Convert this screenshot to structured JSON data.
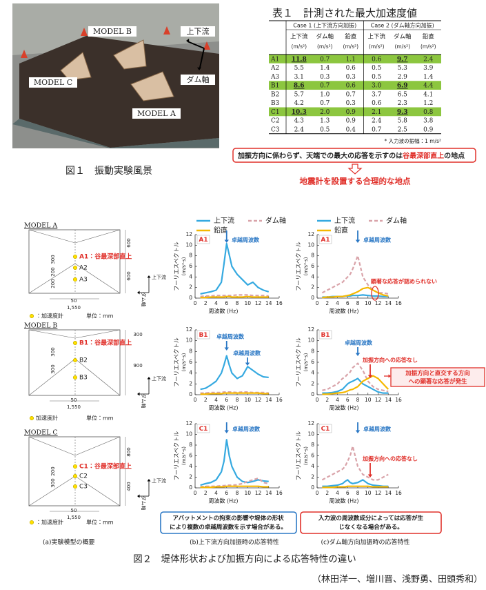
{
  "figure1": {
    "labels": {
      "model_a": "MODEL A",
      "model_b": "MODEL B",
      "model_c": "MODEL C",
      "upstream": "上下流",
      "dam_axis": "ダム軸"
    },
    "caption": "図１　振動実験風景"
  },
  "table1": {
    "title": "表１　計測された最大加速度値",
    "groups": [
      "Case 1 (上下流方向加振)",
      "Case 2 (ダム軸方向加振)"
    ],
    "columns": [
      "上下流",
      "ダム軸",
      "鉛直",
      "上下流",
      "ダム軸",
      "鉛直"
    ],
    "unit": "(m/s²)",
    "rows": [
      {
        "label": "A1",
        "values": [
          "11.8",
          "0.7",
          "1.1",
          "0.6",
          "9.7",
          "2.4"
        ],
        "highlight": true,
        "bold": [
          true,
          false,
          false,
          false,
          true,
          false
        ]
      },
      {
        "label": "A2",
        "values": [
          "5.5",
          "1.4",
          "0.6",
          "0.5",
          "5.3",
          "3.9"
        ],
        "highlight": false
      },
      {
        "label": "A3",
        "values": [
          "3.1",
          "0.3",
          "0.3",
          "0.5",
          "2.9",
          "1.4"
        ],
        "highlight": false
      },
      {
        "label": "B1",
        "values": [
          "8.6",
          "0.7",
          "0.6",
          "3.0",
          "6.9",
          "4.4"
        ],
        "highlight": true,
        "bold": [
          true,
          false,
          false,
          false,
          true,
          false
        ]
      },
      {
        "label": "B2",
        "values": [
          "5.7",
          "1.0",
          "0.7",
          "3.7",
          "6.5",
          "4.1"
        ],
        "highlight": false
      },
      {
        "label": "B3",
        "values": [
          "4.2",
          "0.7",
          "0.3",
          "0.6",
          "2.3",
          "1.2"
        ],
        "highlight": false
      },
      {
        "label": "C1",
        "values": [
          "10.3",
          "2.0",
          "0.9",
          "2.1",
          "9.3",
          "0.8"
        ],
        "highlight": true,
        "bold": [
          true,
          false,
          false,
          false,
          true,
          false
        ]
      },
      {
        "label": "C2",
        "values": [
          "4.3",
          "1.3",
          "0.9",
          "2.4",
          "5.8",
          "3.8"
        ],
        "highlight": false
      },
      {
        "label": "C3",
        "values": [
          "2.4",
          "0.5",
          "0.4",
          "0.7",
          "2.5",
          "0.9"
        ],
        "highlight": false
      }
    ],
    "note": "* 入力波の振幅：1 m/s²"
  },
  "callout": {
    "before": "加振方向に係わらず、天端での最大の応答を示すのは",
    "highlight": "谷最深部直上",
    "after": "の地点",
    "conclusion": "地震計を設置する合理的な地点"
  },
  "figure2": {
    "models": [
      {
        "title": "MODEL A",
        "points": [
          "A1：谷最深部直上",
          "A2",
          "A3"
        ],
        "dims": [
          "600",
          "600",
          "300",
          "200",
          "200",
          "50",
          "1,550"
        ],
        "sensor": "：加速度計",
        "unit": "単位：mm"
      },
      {
        "title": "MODEL B",
        "points": [
          "B1：谷最深部直上",
          "B2",
          "B3"
        ],
        "dims": [
          "300",
          "900",
          "300",
          "300",
          "50",
          "1,550"
        ],
        "sensor": "加速度計",
        "unit": "単位：mm"
      },
      {
        "title": "MODEL C",
        "points": [
          "C1：谷最深部直上",
          "C2",
          "C3"
        ],
        "dims": [
          "800",
          "400",
          "200",
          "300",
          "50",
          "1,550"
        ],
        "sensor": "：加速度計",
        "unit": "単位：mm"
      }
    ],
    "axes_symbol": {
      "upstream": "上下流",
      "dam_axis": "ダム軸"
    },
    "series": [
      {
        "name": "上下流",
        "color": "#35a9e0",
        "dashed": false
      },
      {
        "name": "ダム軸",
        "color": "#d9a3a9",
        "dashed": true
      },
      {
        "name": "鉛直",
        "color": "#f5b800",
        "dashed": false
      }
    ],
    "axes": {
      "xlim": [
        0,
        16
      ],
      "ylim": [
        0,
        12
      ],
      "xticks": [
        0,
        2,
        4,
        6,
        8,
        10,
        12,
        14,
        16
      ],
      "yticks": [
        0,
        2,
        4,
        6,
        8,
        10,
        12
      ],
      "xlabel": "周波数 (Hz)",
      "ylabel": "フーリエスペクトル",
      "yunit": "(m/s²·s)"
    },
    "x": [
      1,
      2,
      3,
      4,
      5,
      5.5,
      6,
      6.5,
      7,
      8,
      9,
      10,
      11,
      12,
      13,
      14
    ],
    "charts": [
      {
        "label": "A1",
        "annotations": [
          "卓越周波数"
        ],
        "values": [
          [
            0.8,
            1.0,
            1.2,
            1.5,
            3.0,
            6.5,
            10.3,
            8.2,
            6.0,
            4.5,
            3.5,
            2.5,
            3.0,
            2.0,
            1.5,
            1.2
          ],
          [
            0.3,
            0.4,
            0.4,
            0.5,
            0.5,
            0.5,
            0.5,
            0.5,
            0.5,
            0.6,
            0.6,
            0.6,
            0.5,
            0.5,
            0.5,
            0.4
          ],
          [
            0.1,
            0.1,
            0.2,
            0.2,
            0.2,
            0.2,
            0.3,
            0.3,
            0.2,
            0.2,
            0.2,
            0.3,
            0.2,
            0.2,
            0.2,
            0.2
          ]
        ]
      },
      {
        "label": "A1",
        "annotations": [
          "卓越周波数",
          "顕著な応答が認められない"
        ],
        "values": [
          [
            0.2,
            0.2,
            0.3,
            0.3,
            0.3,
            0.4,
            0.4,
            0.4,
            0.5,
            0.5,
            0.6,
            0.5,
            0.4,
            0.4,
            0.3,
            0.3
          ],
          [
            1.0,
            1.5,
            2.0,
            2.5,
            3.0,
            3.5,
            4.0,
            4.5,
            5.5,
            8.0,
            4.0,
            2.5,
            1.5,
            1.0,
            1.0,
            0.8
          ],
          [
            0.1,
            0.2,
            0.2,
            0.3,
            0.3,
            0.4,
            0.5,
            0.6,
            0.8,
            1.2,
            1.8,
            2.0,
            1.5,
            1.0,
            0.6,
            0.4
          ]
        ]
      },
      {
        "label": "B1",
        "annotations": [
          "卓越周波数",
          "卓越周波数"
        ],
        "values": [
          [
            1.0,
            1.2,
            1.8,
            2.5,
            4.0,
            5.5,
            7.2,
            5.5,
            4.0,
            3.0,
            3.5,
            5.2,
            4.5,
            3.8,
            3.3,
            3.2
          ],
          [
            0.3,
            0.3,
            0.4,
            0.4,
            0.4,
            0.5,
            0.5,
            0.5,
            0.5,
            0.4,
            0.5,
            0.5,
            0.4,
            0.4,
            0.4,
            0.3
          ],
          [
            0.1,
            0.1,
            0.2,
            0.2,
            0.2,
            0.3,
            0.3,
            0.3,
            0.3,
            0.3,
            0.3,
            0.3,
            0.3,
            0.3,
            0.2,
            0.2
          ]
        ]
      },
      {
        "label": "B1",
        "annotations": [
          "卓越周波数",
          "加振方向への応答なし"
        ],
        "note": [
          "加振方向と直交する方向",
          "への顕著な応答が発生"
        ],
        "values": [
          [
            0.3,
            0.3,
            0.4,
            0.6,
            1.0,
            1.5,
            2.0,
            2.3,
            2.5,
            3.0,
            2.0,
            1.5,
            1.0,
            0.5,
            0.3,
            0.3
          ],
          [
            0.8,
            1.0,
            1.5,
            2.0,
            3.0,
            3.3,
            3.8,
            4.2,
            5.0,
            5.8,
            4.5,
            2.5,
            1.5,
            1.0,
            0.8,
            0.6
          ],
          [
            0.1,
            0.1,
            0.2,
            0.3,
            0.4,
            0.5,
            0.7,
            0.9,
            1.0,
            1.5,
            2.5,
            3.0,
            3.5,
            3.0,
            2.0,
            1.0
          ]
        ]
      },
      {
        "label": "C1",
        "annotations": [
          "卓越周波数"
        ],
        "values": [
          [
            0.5,
            0.8,
            1.0,
            1.5,
            3.0,
            5.0,
            9.0,
            6.0,
            4.0,
            2.0,
            1.2,
            1.0,
            1.2,
            1.5,
            1.3,
            1.2
          ],
          [
            0.2,
            0.3,
            0.3,
            0.3,
            0.4,
            0.4,
            0.5,
            0.5,
            0.5,
            0.6,
            0.8,
            1.2,
            1.5,
            1.8,
            1.0,
            0.8
          ],
          [
            0.1,
            0.1,
            0.1,
            0.2,
            0.2,
            0.2,
            0.3,
            0.3,
            0.3,
            0.3,
            0.3,
            0.3,
            0.3,
            0.3,
            0.2,
            0.2
          ]
        ]
      },
      {
        "label": "C1",
        "annotations": [
          "卓越周波数",
          "加振方向への応答なし"
        ],
        "values": [
          [
            0.3,
            0.3,
            0.4,
            0.5,
            0.8,
            1.2,
            1.5,
            1.0,
            0.8,
            1.0,
            1.5,
            0.8,
            0.5,
            0.4,
            0.3,
            0.3
          ],
          [
            1.5,
            2.0,
            2.5,
            3.0,
            3.5,
            4.0,
            5.0,
            6.0,
            7.8,
            4.0,
            2.5,
            2.0,
            1.5,
            1.5,
            2.0,
            2.5
          ],
          [
            0.1,
            0.1,
            0.1,
            0.2,
            0.2,
            0.2,
            0.3,
            0.3,
            0.3,
            0.3,
            0.3,
            0.3,
            0.2,
            0.2,
            0.2,
            0.2
          ]
        ]
      }
    ],
    "findings": [
      {
        "lines": [
          "アバットメントの拘束の影響や堤体の形状",
          "により複数の卓越周波数を示す場合がある。"
        ]
      },
      {
        "lines": [
          "入力波の周波数成分によっては応答が生",
          "じなくなる場合がある。"
        ]
      }
    ],
    "subcaptions": [
      "(a)実験模型の概要",
      "(b)上下流方向加振時の応答特性",
      "(c)ダム軸方向加振時の応答特性"
    ],
    "caption": "図２　堤体形状および加振方向による応答特性の違い"
  },
  "authors": "（林田洋一、増川晋、浅野勇、田頭秀和）"
}
